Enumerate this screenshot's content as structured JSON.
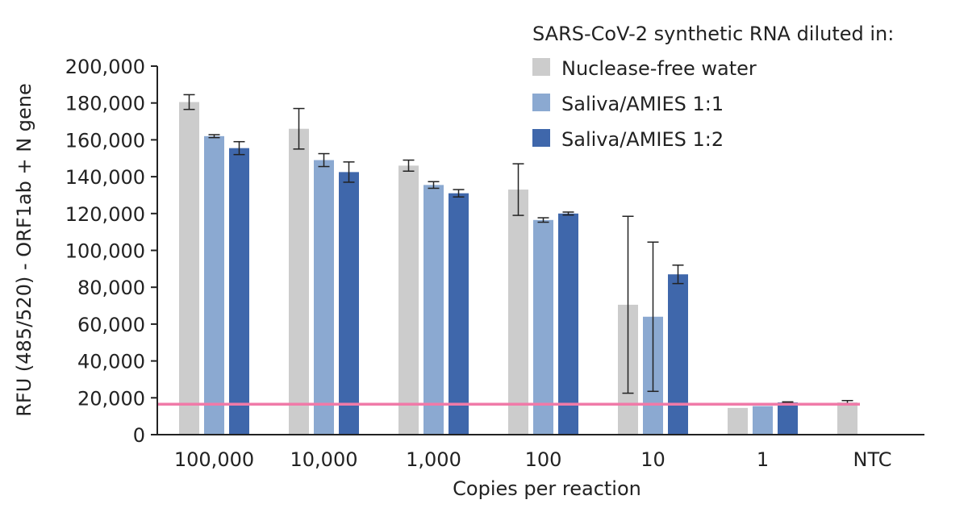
{
  "chart_data": {
    "type": "bar",
    "title": "",
    "xlabel": "Copies per reaction",
    "ylabel": "RFU (485/520) - ORF1ab + N gene",
    "categories": [
      "100,000",
      "10,000",
      "1,000",
      "100",
      "10",
      "1",
      "NTC"
    ],
    "ylim": [
      0,
      200000
    ],
    "yticks": [
      0,
      20000,
      40000,
      60000,
      80000,
      100000,
      120000,
      140000,
      160000,
      180000,
      200000
    ],
    "ytick_labels": [
      "0",
      "20,000",
      "40,000",
      "60,000",
      "80,000",
      "100,000",
      "120,000",
      "140,000",
      "160,000",
      "180,000",
      "200,000"
    ],
    "legend_title": "SARS-CoV-2 synthetic RNA diluted in:",
    "legend_position": "top-right",
    "grid": false,
    "series": [
      {
        "name": "Nuclease-free water",
        "color": "#cccccc",
        "values": [
          180500,
          166000,
          146000,
          133000,
          70500,
          14500,
          17500
        ],
        "errors": [
          4000,
          11000,
          3000,
          14000,
          48000,
          0,
          1000
        ]
      },
      {
        "name": "Saliva/AMIES 1:1",
        "color": "#8ba9d1",
        "values": [
          162000,
          149000,
          135500,
          116500,
          64000,
          15500,
          null
        ],
        "errors": [
          800,
          3500,
          1800,
          1200,
          40500,
          0,
          null
        ]
      },
      {
        "name": "Saliva/AMIES 1:2",
        "color": "#3f67ab",
        "values": [
          155500,
          142500,
          131000,
          120000,
          87000,
          17500,
          null
        ],
        "errors": [
          3500,
          5500,
          2000,
          800,
          5000,
          300,
          null
        ]
      }
    ],
    "threshold": {
      "value": 16500,
      "color": "#f07aa8"
    }
  }
}
